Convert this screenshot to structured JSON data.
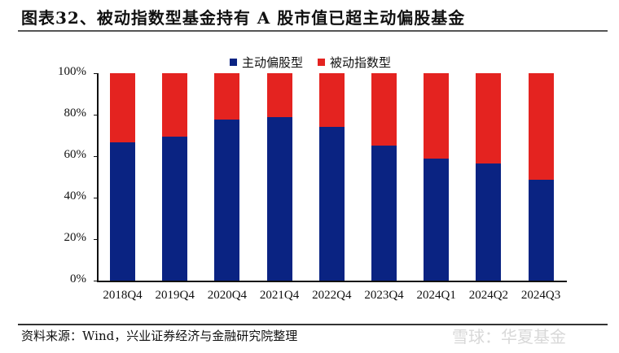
{
  "title": "图表32、被动指数型基金持有 A 股市值已超主动偏股基金",
  "source": "资料来源：Wind，兴业证券经济与金融研究院整理",
  "watermark": "雪球：华夏基金",
  "colors": {
    "active": "#0a2382",
    "passive": "#e42320"
  },
  "legend": [
    {
      "label": "主动偏股型",
      "color": "#0a2382"
    },
    {
      "label": "被动指数型",
      "color": "#e42320"
    }
  ],
  "y_ticks": [
    "100%",
    "80%",
    "60%",
    "40%",
    "20%",
    "0%"
  ],
  "chart_data": {
    "type": "bar",
    "stacked": true,
    "normalized": true,
    "title": "图表32、被动指数型基金持有 A 股市值已超主动偏股基金",
    "categories": [
      "2018Q4",
      "2019Q4",
      "2020Q4",
      "2021Q4",
      "2022Q4",
      "2023Q4",
      "2024Q1",
      "2024Q2",
      "2024Q3"
    ],
    "series": [
      {
        "name": "主动偏股型",
        "values": [
          66.7,
          69.4,
          77.6,
          78.8,
          74.1,
          65.0,
          58.8,
          56.5,
          48.6
        ]
      },
      {
        "name": "被动指数型",
        "values": [
          33.3,
          30.6,
          22.4,
          21.2,
          25.9,
          35.0,
          41.2,
          43.5,
          51.4
        ]
      }
    ],
    "xlabel": "",
    "ylabel": "",
    "ylim": [
      0,
      100
    ],
    "ytick_format": "percent",
    "grid": false,
    "legend_position": "top"
  }
}
